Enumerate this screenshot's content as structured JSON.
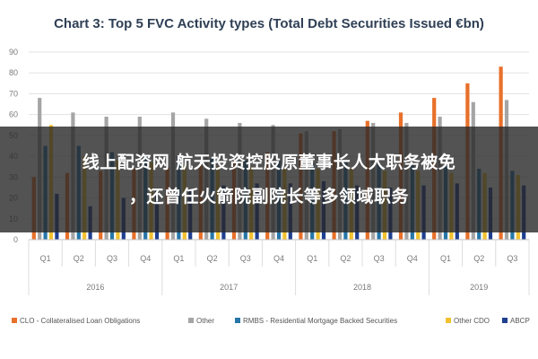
{
  "overlay": {
    "line1": "线上配资网 航天投资控股原董事长人大职务被免",
    "line2": "，还曾任火箭院副院长等多领域职务"
  },
  "chart_data": {
    "type": "bar",
    "title": "Chart 3: Top 5 FVC Activity types (Total Debt Securities Issued €bn)",
    "quarters": [
      "Q1",
      "Q2",
      "Q3",
      "Q4",
      "Q1",
      "Q2",
      "Q3",
      "Q4",
      "Q1",
      "Q2",
      "Q3",
      "Q4",
      "Q1",
      "Q2",
      "Q3"
    ],
    "years": [
      "2016",
      "2017",
      "2018",
      "2019"
    ],
    "ylim": [
      0,
      90
    ],
    "yticks": [
      "0",
      "10",
      "20",
      "30",
      "40",
      "50",
      "60",
      "70",
      "80",
      "90"
    ],
    "grid": true,
    "legend_position": "bottom",
    "series": [
      {
        "name": "CLO - Collateralised Loan Obligations",
        "color": "#e8702a",
        "values": [
          30,
          32,
          33,
          34,
          35,
          36,
          38,
          42,
          51,
          52,
          57,
          61,
          68,
          75,
          83
        ]
      },
      {
        "name": "Other",
        "color": "#a5a5a5",
        "values": [
          68,
          61,
          59,
          59,
          61,
          58,
          56,
          55,
          52,
          53,
          56,
          56,
          59,
          66,
          67
        ]
      },
      {
        "name": "RMBS - Residential Mortgage Backed Securities",
        "color": "#2676a8",
        "values": [
          45,
          45,
          42,
          40,
          40,
          39,
          38,
          38,
          37,
          37,
          36,
          36,
          35,
          34,
          33
        ]
      },
      {
        "name": "Other CDO",
        "color": "#f2c12e",
        "values": [
          55,
          40,
          38,
          37,
          36,
          35,
          35,
          34,
          34,
          34,
          33,
          33,
          32,
          32,
          31
        ]
      },
      {
        "name": "ABCP",
        "color": "#1f3f8f",
        "values": [
          22,
          16,
          20,
          24,
          24,
          26,
          27,
          27,
          28,
          26,
          25,
          26,
          27,
          25,
          26
        ]
      }
    ]
  }
}
